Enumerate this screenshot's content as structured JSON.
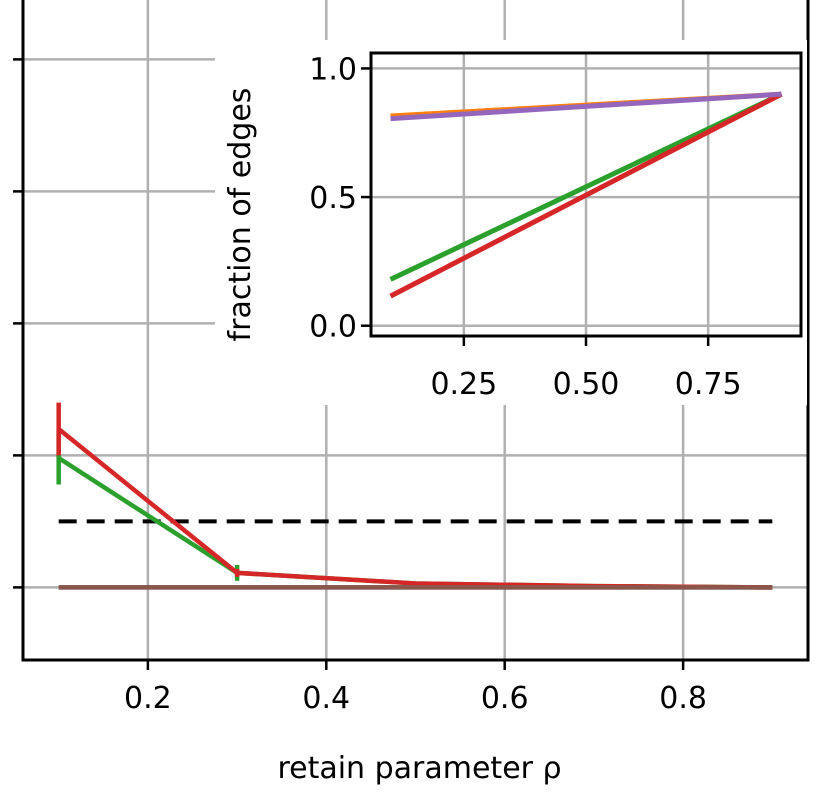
{
  "chart_data": [
    {
      "type": "line",
      "xlabel": "retain parameter ρ",
      "xlim": [
        0.06,
        0.94
      ],
      "ylim": [
        -0.55,
        4.45
      ],
      "x_ticks": [
        0.2,
        0.4,
        0.6,
        0.8
      ],
      "x_tick_labels": [
        "0.2",
        "0.4",
        "0.6",
        "0.8"
      ],
      "y_ticks": [
        0,
        1,
        2,
        3,
        4,
        5
      ],
      "grid": true,
      "series": [
        {
          "color": "#1f77b4",
          "x": [
            0.1,
            0.3,
            0.5,
            0.7,
            0.9
          ],
          "y": [
            0.0,
            0.0,
            0.0,
            0.0,
            0.0
          ]
        },
        {
          "color": "#2ca02c",
          "x": [
            0.1,
            0.3,
            0.5,
            0.7,
            0.9
          ],
          "y": [
            0.98,
            0.11,
            0.03,
            0.01,
            0.0
          ],
          "err": [
            0.2,
            0.06,
            0,
            0,
            0
          ]
        },
        {
          "color": "#d62728",
          "x": [
            0.1,
            0.3,
            0.5,
            0.7,
            0.9
          ],
          "y": [
            1.2,
            0.11,
            0.03,
            0.01,
            0.0
          ],
          "err": [
            0.2,
            0.03,
            0,
            0,
            0
          ]
        },
        {
          "color": "#8c564b",
          "x": [
            0.1,
            0.3,
            0.5,
            0.7,
            0.9
          ],
          "y": [
            0.0,
            0.0,
            0.0,
            0.0,
            0.0
          ]
        }
      ],
      "reference_line": {
        "y": 0.5,
        "x": [
          0.1,
          0.9
        ],
        "color": "#000000",
        "style": "dashed"
      }
    },
    {
      "type": "line",
      "ylabel": "fraction of edges",
      "xlim": [
        0.06,
        0.94
      ],
      "ylim": [
        -0.04,
        1.06
      ],
      "x_ticks": [
        0.25,
        0.5,
        0.75
      ],
      "x_tick_labels": [
        "0.25",
        "0.50",
        "0.75"
      ],
      "y_ticks": [
        0.0,
        0.5,
        1.0
      ],
      "y_tick_labels": [
        "0.0",
        "0.5",
        "1.0"
      ],
      "grid": true,
      "series": [
        {
          "color": "#ff7f0e",
          "x": [
            0.1,
            0.9
          ],
          "y": [
            0.815,
            0.9
          ]
        },
        {
          "color": "#2ca02c",
          "x": [
            0.1,
            0.9
          ],
          "y": [
            0.18,
            0.9
          ]
        },
        {
          "color": "#d62728",
          "x": [
            0.1,
            0.9
          ],
          "y": [
            0.115,
            0.9
          ]
        },
        {
          "color": "#9467bd",
          "x": [
            0.1,
            0.9
          ],
          "y": [
            0.805,
            0.9
          ]
        }
      ]
    }
  ]
}
